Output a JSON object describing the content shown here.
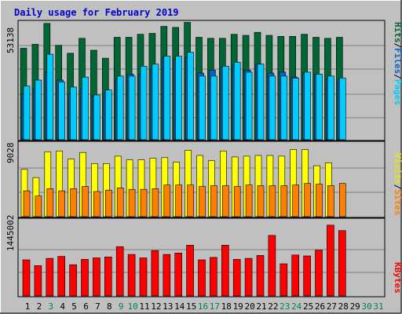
{
  "chart_data": [
    {
      "type": "bar",
      "title": "Daily usage for February 2019",
      "panel": "hits-files-pages",
      "y_max_label": "53138",
      "categories": [
        "1",
        "2",
        "3",
        "4",
        "5",
        "6",
        "7",
        "8",
        "9",
        "10",
        "11",
        "12",
        "13",
        "14",
        "15",
        "16",
        "17",
        "18",
        "19",
        "20",
        "21",
        "22",
        "23",
        "24",
        "25",
        "26",
        "27",
        "28",
        "29",
        "30",
        "31"
      ],
      "series": [
        {
          "name": "Hits",
          "color": "#006633",
          "values": [
            46000,
            48000,
            58500,
            47500,
            43500,
            51000,
            45000,
            41000,
            51500,
            51500,
            53000,
            53500,
            57000,
            56500,
            59000,
            51500,
            51000,
            51000,
            53000,
            52500,
            54000,
            52500,
            52000,
            52000,
            53000,
            51500,
            51000,
            51500,
            0,
            0,
            0
          ]
        },
        {
          "name": "Files",
          "color": "#0066cc",
          "values": [
            23000,
            26000,
            34000,
            30000,
            23000,
            25500,
            22000,
            23500,
            30500,
            33000,
            33000,
            35500,
            41500,
            40500,
            41500,
            33500,
            35000,
            36500,
            37500,
            35000,
            38000,
            33500,
            34000,
            31500,
            33500,
            33000,
            30500,
            30500,
            0,
            0,
            0
          ]
        },
        {
          "name": "Pages",
          "color": "#00ccff",
          "values": [
            27000,
            30000,
            43000,
            29000,
            26500,
            31500,
            22500,
            25000,
            32000,
            32000,
            37000,
            38000,
            42000,
            42000,
            44000,
            32000,
            32000,
            37000,
            39000,
            34000,
            38000,
            32000,
            32000,
            31000,
            34000,
            33000,
            32000,
            31000,
            0,
            0,
            0
          ]
        }
      ]
    },
    {
      "type": "bar",
      "panel": "visits-sites",
      "y_max_label": "9028",
      "categories": [
        "1",
        "2",
        "3",
        "4",
        "5",
        "6",
        "7",
        "8",
        "9",
        "10",
        "11",
        "12",
        "13",
        "14",
        "15",
        "16",
        "17",
        "18",
        "19",
        "20",
        "21",
        "22",
        "23",
        "24",
        "25",
        "26",
        "27",
        "28",
        "29",
        "30",
        "31"
      ],
      "series": [
        {
          "name": "Visits",
          "color": "#ffff00",
          "values": [
            6400,
            5300,
            8800,
            8900,
            7800,
            8700,
            7200,
            7200,
            8200,
            7700,
            7700,
            7900,
            8000,
            7400,
            9000,
            8300,
            7600,
            8900,
            8100,
            8200,
            8300,
            8300,
            8200,
            9100,
            9100,
            6900,
            7300,
            0,
            0,
            0,
            0
          ]
        },
        {
          "name": "Sites",
          "color": "#ff8000",
          "values": [
            3500,
            2800,
            3800,
            3500,
            3800,
            4100,
            3400,
            3600,
            3900,
            3700,
            3700,
            3800,
            4300,
            4300,
            4300,
            4100,
            4200,
            4200,
            4100,
            4300,
            4200,
            4200,
            4200,
            4300,
            4500,
            4400,
            4200,
            4500,
            0,
            0,
            0
          ]
        }
      ]
    },
    {
      "type": "bar",
      "panel": "kbytes",
      "y_max_label": "1445002",
      "categories": [
        "1",
        "2",
        "3",
        "4",
        "5",
        "6",
        "7",
        "8",
        "9",
        "10",
        "11",
        "12",
        "13",
        "14",
        "15",
        "16",
        "17",
        "18",
        "19",
        "20",
        "21",
        "22",
        "23",
        "24",
        "25",
        "26",
        "27",
        "28",
        "29",
        "30",
        "31"
      ],
      "series": [
        {
          "name": "KBytes",
          "color": "#ff0000",
          "values": [
            740000,
            620000,
            770000,
            810000,
            640000,
            750000,
            780000,
            800000,
            1010000,
            850000,
            780000,
            930000,
            850000,
            880000,
            1040000,
            740000,
            790000,
            1040000,
            750000,
            770000,
            830000,
            1240000,
            660000,
            840000,
            820000,
            940000,
            1450000,
            1340000,
            0,
            0,
            0
          ]
        }
      ]
    }
  ],
  "weekend_days": [
    3,
    9,
    10,
    16,
    17,
    23,
    24,
    30,
    31
  ],
  "weekend_color": "#00805c",
  "weekday_color": "#000000",
  "legend": {
    "top": [
      {
        "text": "Hits",
        "color": "#006633"
      },
      {
        "text": "/",
        "color": "#000000"
      },
      {
        "text": "Files",
        "color": "#0066cc"
      },
      {
        "text": "/",
        "color": "#000000"
      },
      {
        "text": "Pages",
        "color": "#00ccff"
      }
    ],
    "mid": [
      {
        "text": "Visits",
        "color": "#e6e600"
      },
      {
        "text": "/",
        "color": "#000000"
      },
      {
        "text": "Sites",
        "color": "#ff8000"
      }
    ],
    "bot": [
      {
        "text": "KBytes",
        "color": "#ff0000"
      }
    ]
  }
}
